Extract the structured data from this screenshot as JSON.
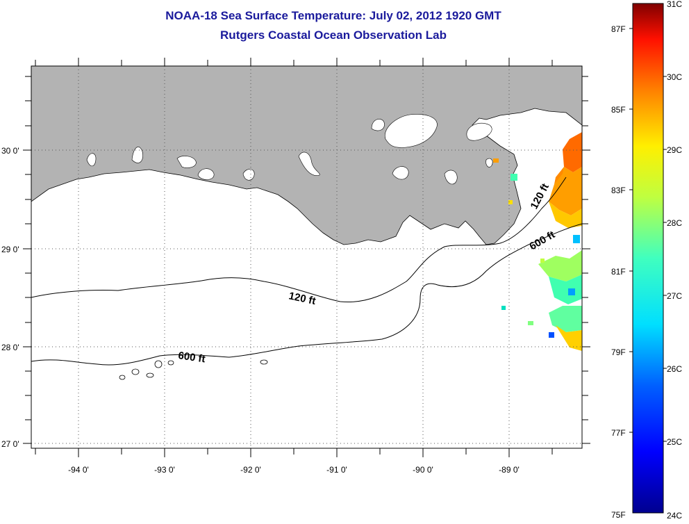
{
  "header": {
    "title": "NOAA-18 Sea Surface Temperature:  July 02, 2012 1920 GMT",
    "subtitle": "Rutgers Coastal Ocean Observation Lab"
  },
  "map": {
    "latitude_labels": [
      "30 0'",
      "29 0'",
      "28 0'",
      "27 0'"
    ],
    "longitude_labels": [
      "-94 0'",
      "-93 0'",
      "-92 0'",
      "-91 0'",
      "-90 0'",
      "-89 0'"
    ],
    "contour_labels": {
      "c120_west": "120 ft",
      "c600_west": "600 ft",
      "c120_east": "120 ft",
      "c600_east": "600 ft"
    },
    "land_color": "#b3b3b3"
  },
  "colorbar": {
    "fahrenheit_labels": [
      "87F",
      "85F",
      "83F",
      "81F",
      "79F",
      "77F",
      "75F"
    ],
    "celsius_labels": [
      "31C",
      "30C",
      "29C",
      "28C",
      "27C",
      "26C",
      "25C",
      "24C"
    ],
    "colormap": "jet",
    "min_c": 24,
    "max_c": 31
  }
}
